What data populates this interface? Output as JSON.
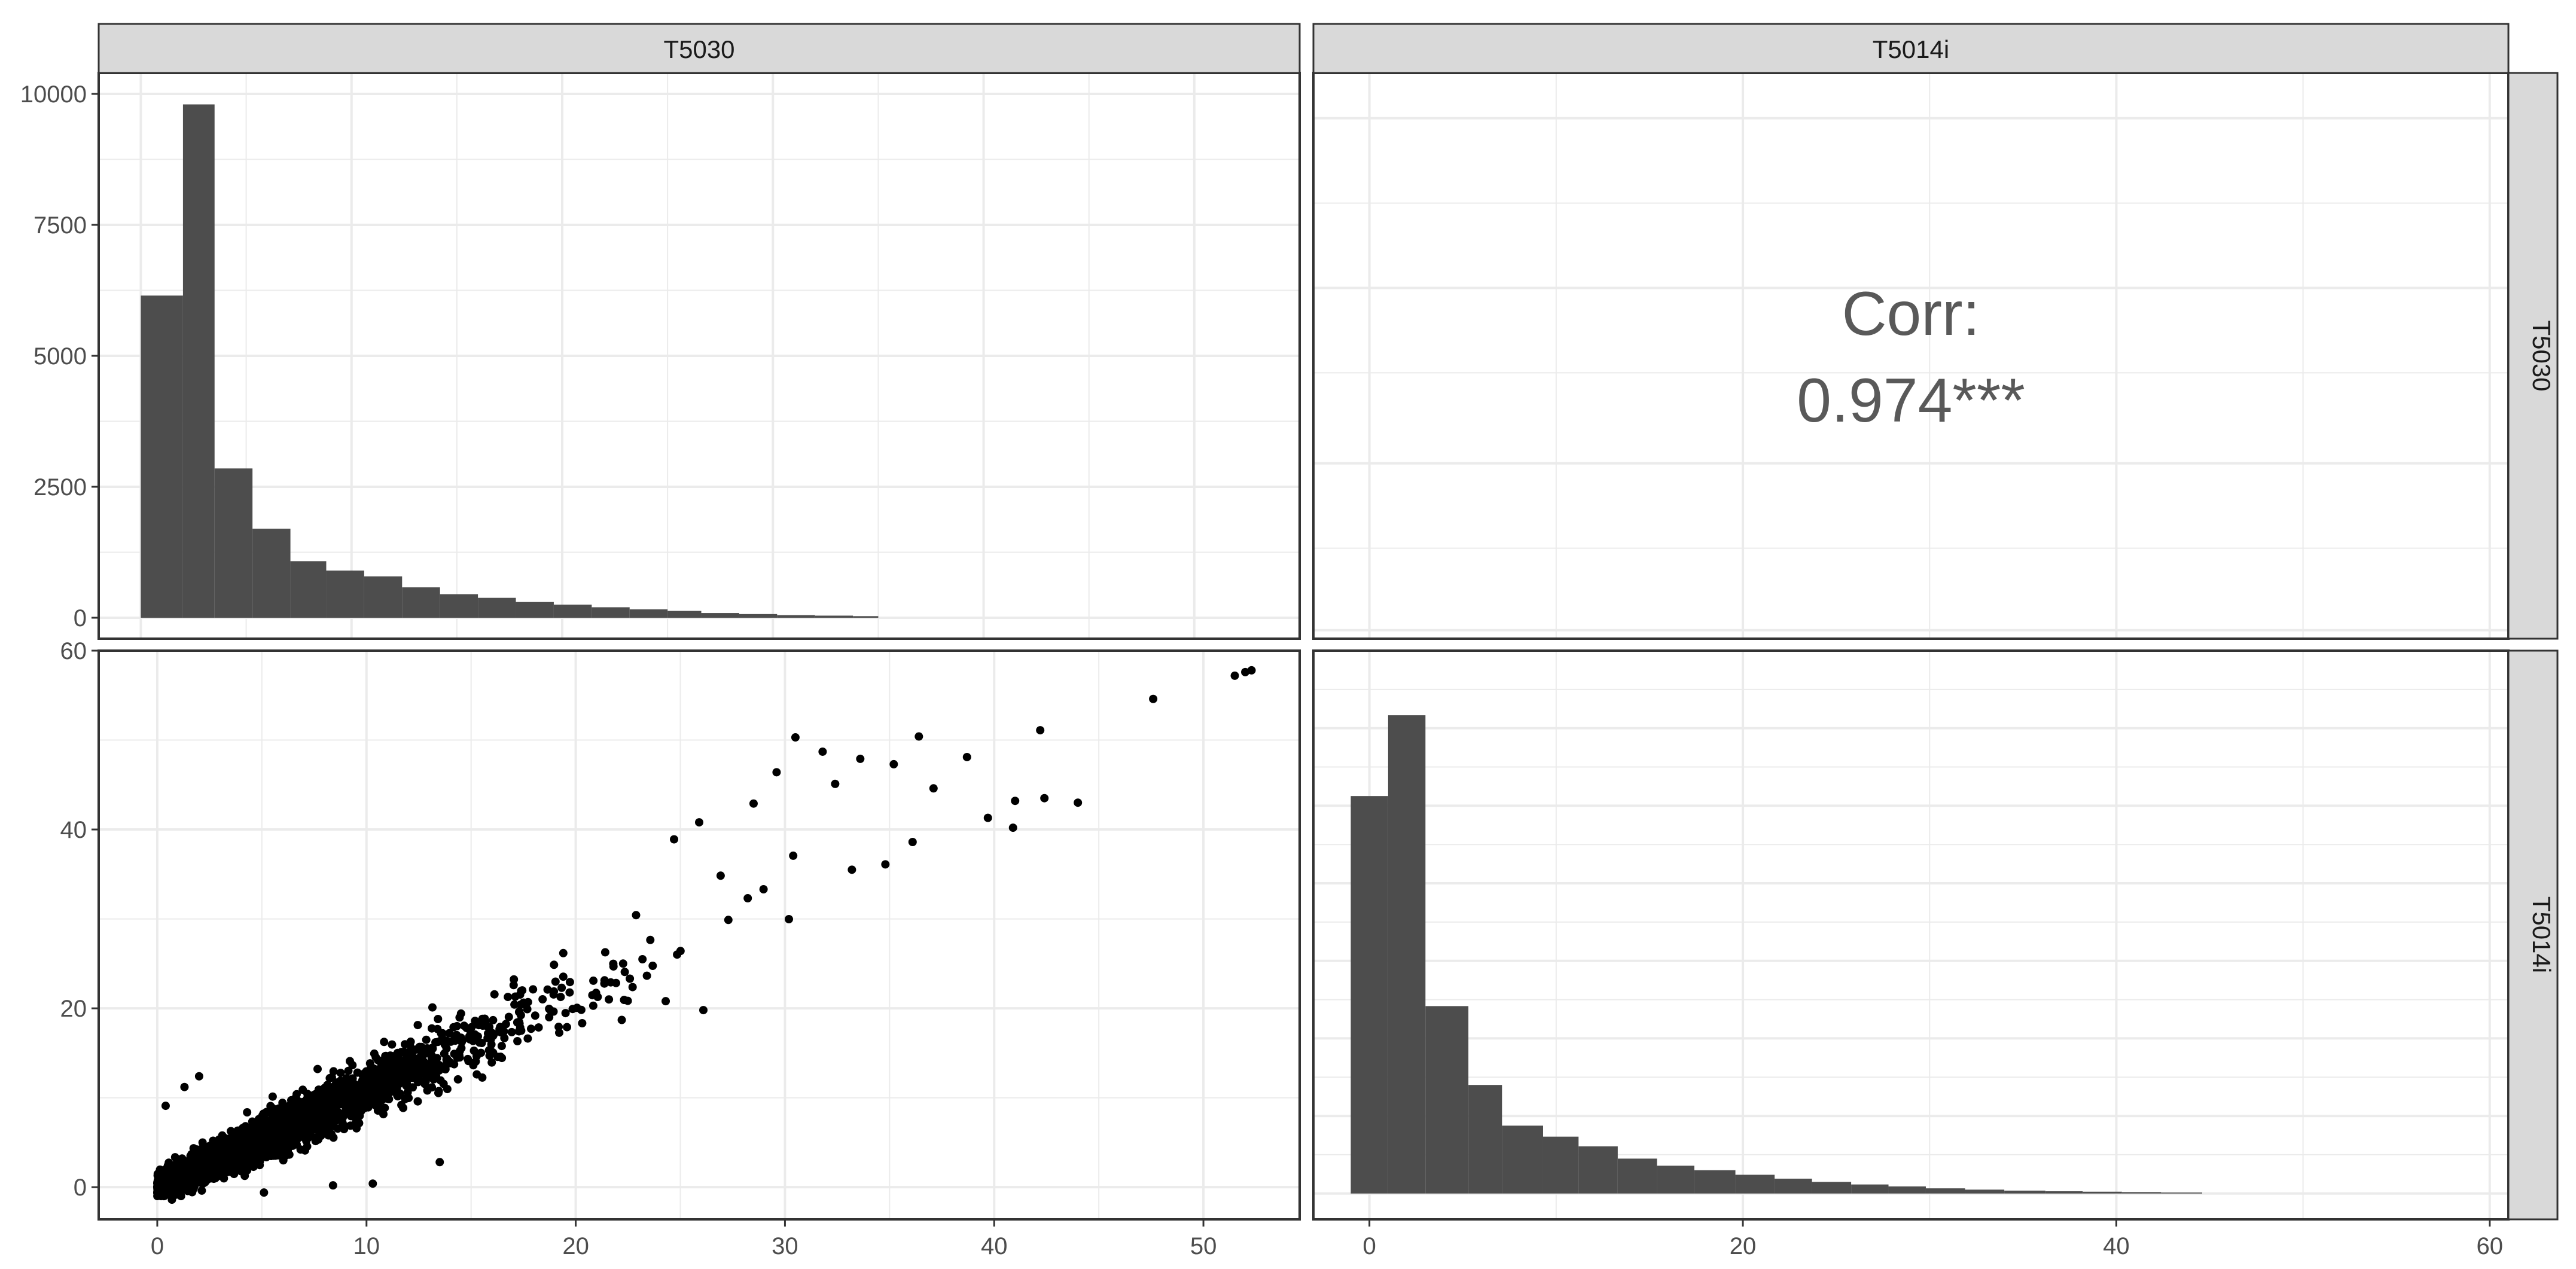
{
  "colors": {
    "bar_fill": "#4d4d4d",
    "point": "#000000",
    "strip_bg": "#d9d9d9",
    "grid": "#ebebeb",
    "frame": "#333333",
    "corr_text": "#595959"
  },
  "chart_data": [
    {
      "panel": "top-left",
      "type": "bar",
      "strip_top": "T5030",
      "strip_right": "",
      "x_range": [
        -2,
        55
      ],
      "ylim": [
        -400,
        10400
      ],
      "y_ticks": [
        0,
        2500,
        5000,
        7500,
        10000
      ],
      "bin_edges": [
        0,
        2,
        3.5,
        5.3,
        7.1,
        8.8,
        10.6,
        12.4,
        14.2,
        16,
        17.8,
        19.6,
        21.4,
        23.2,
        25,
        26.6,
        28.4,
        30.2,
        32,
        33.8,
        35
      ],
      "values": [
        6150,
        9800,
        2850,
        1700,
        1080,
        900,
        790,
        580,
        450,
        380,
        300,
        250,
        200,
        160,
        130,
        90,
        70,
        50,
        40,
        30
      ],
      "grid": true
    },
    {
      "panel": "top-right",
      "type": "table",
      "strip_top": "T5014i",
      "strip_right": "T5030",
      "corr_label": "Corr:",
      "corr_value": "0.974***",
      "grid": true
    },
    {
      "panel": "bottom-left",
      "type": "scatter",
      "strip_top": "",
      "strip_right": "",
      "x_range": [
        -2.8,
        54.6
      ],
      "ylim": [
        -3.6,
        60
      ],
      "x_ticks": [
        0,
        10,
        20,
        30,
        40,
        50
      ],
      "y_ticks": [
        0,
        20,
        40,
        60
      ],
      "relationship": {
        "slope": 1.08,
        "x_max": 36,
        "n_points": 5000
      },
      "outliers": [
        {
          "x": 30.5,
          "y": 50.3
        },
        {
          "x": 36.4,
          "y": 50.4
        },
        {
          "x": 42.2,
          "y": 51.1
        },
        {
          "x": 47.6,
          "y": 54.6
        },
        {
          "x": 51.5,
          "y": 57.2
        },
        {
          "x": 52.0,
          "y": 57.6
        },
        {
          "x": 52.3,
          "y": 57.8
        },
        {
          "x": 38.7,
          "y": 48.1
        },
        {
          "x": 41.0,
          "y": 43.2
        },
        {
          "x": 42.4,
          "y": 43.5
        },
        {
          "x": 44.0,
          "y": 43.0
        },
        {
          "x": 39.7,
          "y": 41.3
        },
        {
          "x": 40.9,
          "y": 40.2
        },
        {
          "x": 37.1,
          "y": 44.6
        },
        {
          "x": 35.2,
          "y": 47.3
        },
        {
          "x": 33.6,
          "y": 47.9
        },
        {
          "x": 32.4,
          "y": 45.1
        },
        {
          "x": 31.8,
          "y": 48.7
        },
        {
          "x": 29.6,
          "y": 46.4
        },
        {
          "x": 28.5,
          "y": 42.9
        },
        {
          "x": 36.1,
          "y": 38.6
        },
        {
          "x": 34.8,
          "y": 36.1
        },
        {
          "x": 33.2,
          "y": 35.5
        },
        {
          "x": 25.9,
          "y": 40.8
        },
        {
          "x": 24.7,
          "y": 38.9
        },
        {
          "x": 26.1,
          "y": 19.8
        },
        {
          "x": 22.2,
          "y": 18.7
        },
        {
          "x": 24.3,
          "y": 20.8
        },
        {
          "x": 8.4,
          "y": 0.2
        },
        {
          "x": 10.3,
          "y": 0.4
        },
        {
          "x": 13.5,
          "y": 2.8
        },
        {
          "x": 5.1,
          "y": -0.6
        },
        {
          "x": 0.7,
          "y": -1.4
        },
        {
          "x": 1.3,
          "y": 11.2
        },
        {
          "x": 2.0,
          "y": 12.4
        },
        {
          "x": 0.4,
          "y": 9.1
        }
      ],
      "grid": true
    },
    {
      "panel": "bottom-right",
      "type": "bar",
      "strip_top": "",
      "strip_right": "T5014i",
      "x_range": [
        -3,
        61
      ],
      "x_ticks": [
        0,
        20,
        40,
        60
      ],
      "bin_edges": [
        -1,
        1,
        3,
        5.3,
        7.1,
        9.3,
        11.2,
        13.3,
        15.4,
        17.4,
        19.6,
        21.7,
        23.7,
        25.8,
        27.8,
        29.8,
        31.9,
        34,
        36.2,
        38.2,
        40.3,
        42.4,
        44.6
      ],
      "values": [
        6150,
        7400,
        2900,
        1680,
        1050,
        880,
        730,
        540,
        430,
        360,
        290,
        230,
        180,
        140,
        110,
        80,
        60,
        45,
        35,
        28,
        22,
        15
      ],
      "ylim": [
        -400,
        8400
      ],
      "grid": true
    }
  ]
}
